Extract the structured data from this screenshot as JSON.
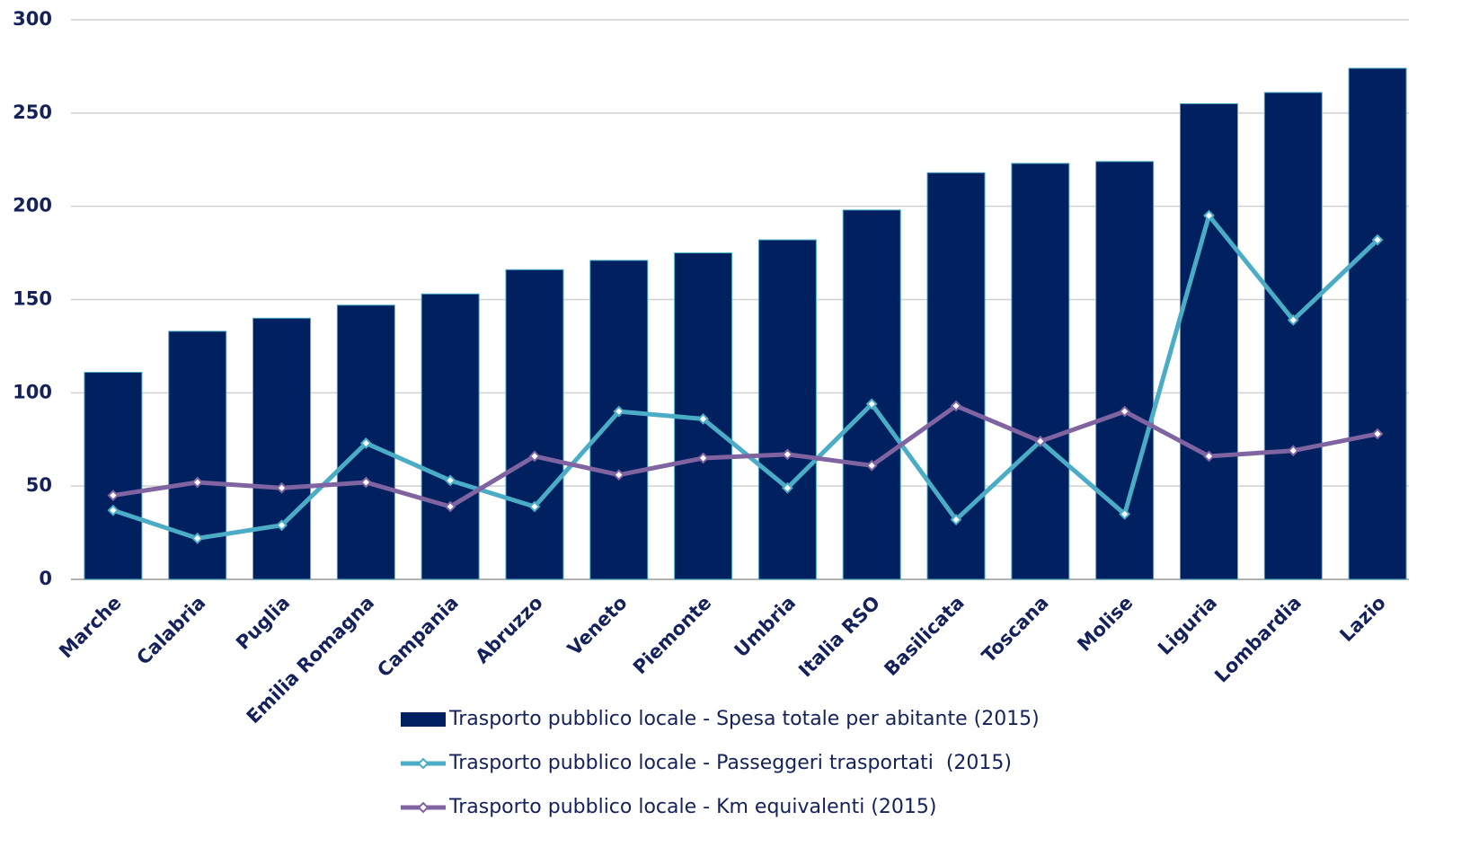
{
  "chart_data": {
    "type": "bar",
    "categories": [
      "Marche",
      "Calabria",
      "Puglia",
      "Emilia Romagna",
      "Campania",
      "Abruzzo",
      "Veneto",
      "Piemonte",
      "Umbria",
      "Italia RSO",
      "Basilicata",
      "Toscana",
      "Molise",
      "Liguria",
      "Lombardia",
      "Lazio"
    ],
    "series": [
      {
        "name": "Trasporto pubblico locale - Spesa totale per abitante (2015)",
        "type": "bar",
        "color": "#002060",
        "values": [
          111,
          133,
          140,
          147,
          153,
          166,
          171,
          175,
          182,
          198,
          218,
          223,
          224,
          255,
          261,
          274
        ]
      },
      {
        "name": "Trasporto pubblico locale - Passeggeri trasportati  (2015)",
        "type": "line",
        "color": "#4bacc6",
        "values": [
          37,
          22,
          29,
          73,
          53,
          39,
          90,
          86,
          49,
          94,
          32,
          74,
          35,
          195,
          139,
          182
        ]
      },
      {
        "name": "Trasporto pubblico locale - Km equivalenti (2015)",
        "type": "line",
        "color": "#8064a2",
        "values": [
          45,
          52,
          49,
          52,
          39,
          66,
          56,
          65,
          67,
          61,
          93,
          74,
          90,
          66,
          69,
          78
        ]
      }
    ],
    "ylim": [
      0,
      300
    ],
    "yticks": [
      0,
      50,
      100,
      150,
      200,
      250,
      300
    ],
    "grid": true
  }
}
